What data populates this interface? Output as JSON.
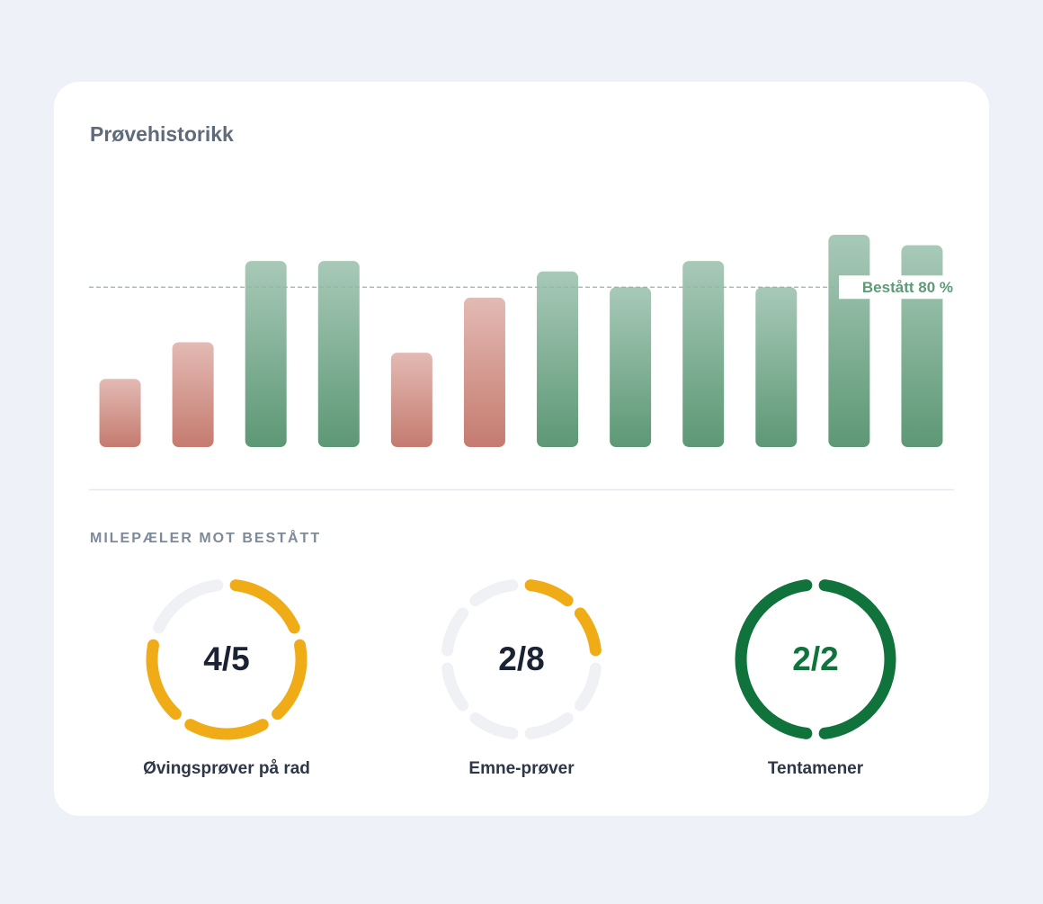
{
  "header": {
    "title": "Prøvehistorikk"
  },
  "chart_data": {
    "type": "bar",
    "values": [
      45,
      59,
      90,
      90,
      55,
      76,
      86,
      80,
      90,
      80,
      100,
      96
    ],
    "ylim": [
      19,
      100
    ],
    "threshold": 80,
    "threshold_label": "Bestått 80 %",
    "pass_colors": [
      "#a8c9b8",
      "#5d9875"
    ],
    "fail_colors": [
      "#e3bab4",
      "#c57b6f"
    ]
  },
  "milestones": {
    "title": "MILEPÆLER MOT BESTÅTT",
    "items": [
      {
        "label": "Øvingsprøver på rad",
        "value_label": "4/5",
        "done": 4,
        "total": 5,
        "color": "#f0ac17",
        "text_color": "#1a2233"
      },
      {
        "label": "Emne-prøver",
        "value_label": "2/8",
        "done": 2,
        "total": 8,
        "color": "#f0ac17",
        "text_color": "#1a2233"
      },
      {
        "label": "Tentamener",
        "value_label": "2/2",
        "done": 2,
        "total": 2,
        "color": "#10733b",
        "text_color": "#10733b"
      }
    ]
  }
}
